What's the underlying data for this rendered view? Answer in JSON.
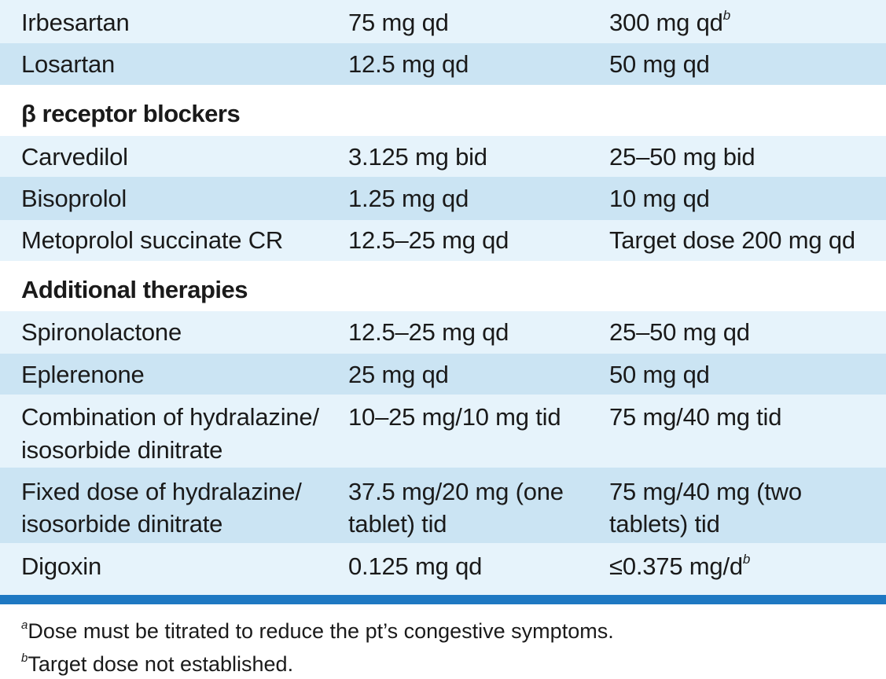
{
  "rows": [
    {
      "drug": "Irbesartan",
      "initial": "75 mg qd",
      "max": "300 mg qd",
      "max_note": "b"
    },
    {
      "drug": "Losartan",
      "initial": "12.5 mg qd",
      "max": "50 mg qd"
    },
    {
      "section": "β receptor blockers"
    },
    {
      "drug": "Carvedilol",
      "initial": "3.125 mg bid",
      "max": "25–50 mg bid"
    },
    {
      "drug": "Bisoprolol",
      "initial": "1.25 mg qd",
      "max": "10 mg qd"
    },
    {
      "drug": "Metoprolol succinate CR",
      "initial": "12.5–25 mg qd",
      "max": "Target dose 200 mg qd"
    },
    {
      "section": "Additional therapies"
    },
    {
      "drug": "Spironolactone",
      "initial": "12.5–25 mg qd",
      "max": "25–50 mg qd"
    },
    {
      "drug": "Eplerenone",
      "initial": "25 mg qd",
      "max": "50 mg qd"
    },
    {
      "drug_lines": [
        "Combination of hydralazine/",
        "isosorbide dinitrate"
      ],
      "initial": "10–25 mg/10 mg tid",
      "max": "75 mg/40 mg tid"
    },
    {
      "drug_lines": [
        "Fixed dose of hydralazine/",
        "isosorbide dinitrate"
      ],
      "initial_lines": [
        "37.5 mg/20 mg (one",
        "tablet) tid"
      ],
      "max_lines": [
        "75 mg/40 mg (two",
        "tablets) tid"
      ]
    },
    {
      "drug": "Digoxin",
      "initial": "0.125 mg qd",
      "max": "≤0.375 mg/d",
      "max_note": "b"
    }
  ],
  "footnotes": [
    {
      "mark": "a",
      "text": "Dose must be titrated to reduce the pt’s congestive symptoms."
    },
    {
      "mark": "b",
      "text": "Target dose not established."
    }
  ],
  "colors": {
    "row_light": "#e6f3fb",
    "row_dark": "#cbe4f3",
    "rule": "#1e78c2"
  }
}
